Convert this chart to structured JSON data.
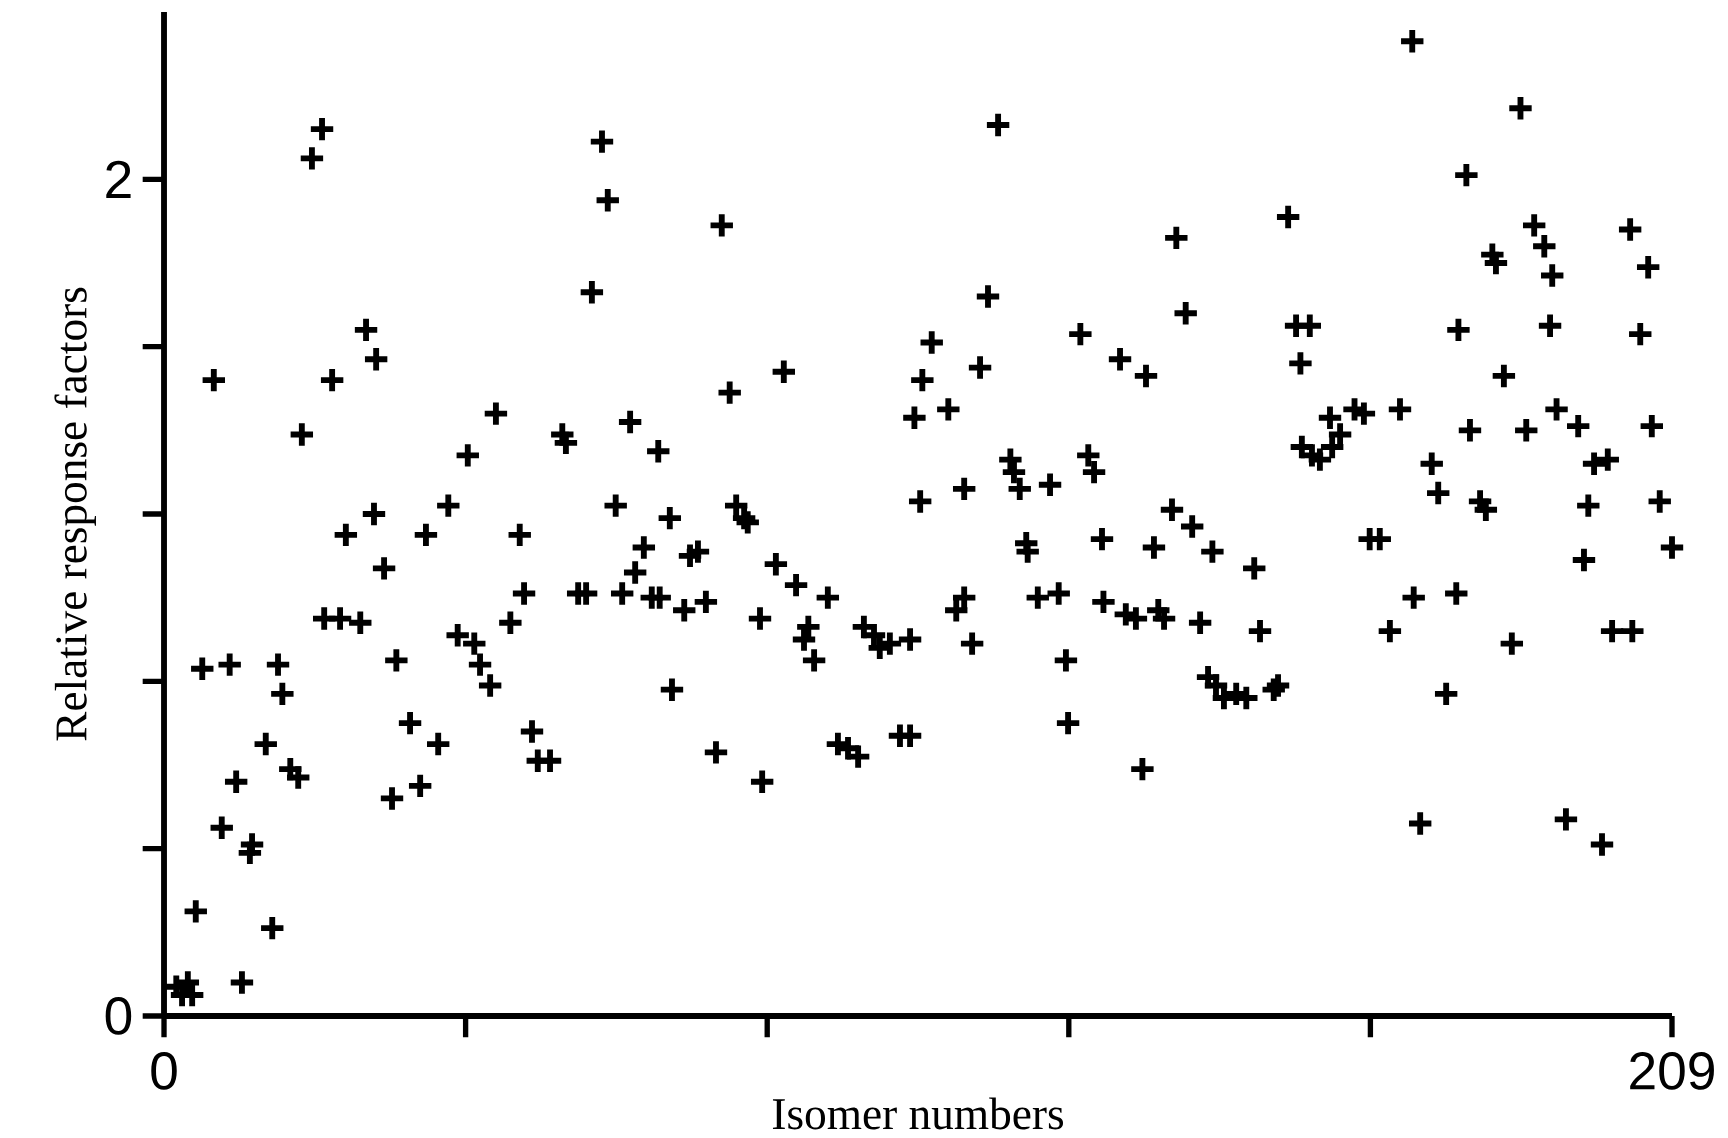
{
  "chart_data": {
    "type": "scatter",
    "xlabel": "Isomer numbers",
    "ylabel": "Relative response factors",
    "marker": "cross",
    "grid": false,
    "xlim": [
      0,
      209
    ],
    "ylim": [
      0,
      2.4
    ],
    "xticks": [
      0,
      {
        "value": 41.8,
        "label": null
      },
      {
        "value": 83.6,
        "label": null
      },
      {
        "value": 125.4,
        "label": null
      },
      {
        "value": 167.2,
        "label": null
      },
      209
    ],
    "yticks": [
      0,
      {
        "value": 0.4,
        "label": null
      },
      {
        "value": 0.8,
        "label": null
      },
      {
        "value": 1.2,
        "label": null
      },
      {
        "value": 1.6,
        "label": null
      },
      2
    ],
    "series": [
      {
        "color": "#000000",
        "x": [
          1.7,
          2.5,
          3.3,
          3.9,
          4.4,
          5.3,
          6.9,
          8.0,
          9.1,
          10.0,
          10.8,
          11.9,
          12.2,
          14.1,
          15.0,
          15.8,
          16.4,
          17.5,
          18.6,
          19.1,
          20.5,
          21.9,
          22.2,
          24.4,
          27.2,
          23.3,
          25.2,
          28.0,
          29.4,
          29.1,
          30.5,
          32.2,
          31.6,
          34.1,
          35.5,
          36.3,
          38.0,
          39.4,
          40.7,
          42.1,
          43.0,
          43.8,
          45.2,
          46.0,
          48.0,
          49.3,
          49.9,
          51.0,
          51.8,
          53.5,
          55.2,
          55.7,
          57.4,
          58.5,
          59.3,
          60.7,
          61.5,
          62.6,
          63.5,
          64.6,
          65.3,
          66.5,
          67.6,
          68.7,
          68.5,
          70.1,
          70.4,
          72.1,
          72.9,
          74.0,
          75.1,
          76.5,
          77.3,
          78.4,
          79.3,
          80.4,
          80.9,
          82.9,
          82.6,
          84.8,
          85.9,
          87.6,
          88.7,
          90.1,
          89.3,
          92.0,
          93.4,
          94.8,
          96.2,
          97.0,
          98.4,
          99.2,
          102.0,
          103.4,
          100.6,
          103.4,
          104.0,
          104.8,
          105.1,
          106.4,
          108.7,
          109.8,
          110.9,
          110.9,
          112.0,
          113.1,
          114.2,
          115.6,
          117.3,
          117.8,
          118.6,
          119.5,
          119.7,
          121.1,
          122.8,
          124.0,
          125.0,
          125.3,
          127.0,
          128.1,
          128.9,
          130.0,
          130.2,
          132.5,
          133.3,
          134.7,
          135.6,
          136.1,
          137.2,
          137.8,
          138.6,
          139.7,
          140.3,
          141.6,
          142.5,
          143.6,
          145.3,
          144.7,
          145.8,
          146.9,
          148.6,
          150.0,
          151.1,
          151.9,
          153.8,
          154.4,
          155.8,
          156.9,
          158.8,
          157.5,
          157.7,
          159.1,
          160.2,
          161.6,
          163.0,
          161.9,
          165.0,
          166.3,
          167.1,
          168.5,
          169.9,
          171.3,
          173.0,
          173.2,
          174.1,
          175.7,
          176.6,
          177.7,
          179.1,
          179.4,
          180.5,
          181.0,
          182.4,
          183.2,
          184.1,
          184.6,
          185.7,
          186.8,
          188.0,
          188.8,
          189.9,
          191.3,
          192.4,
          192.1,
          193.0,
          194.3,
          196.0,
          196.8,
          197.4,
          198.2,
          199.3,
          200.1,
          200.7,
          203.2,
          203.5,
          204.6,
          205.7,
          206.2,
          207.3,
          209.0
        ],
        "values": [
          0.07,
          0.05,
          0.08,
          0.05,
          0.25,
          0.83,
          1.52,
          0.45,
          0.84,
          0.56,
          0.08,
          0.39,
          0.41,
          0.65,
          0.21,
          0.84,
          0.77,
          0.59,
          0.57,
          1.39,
          2.05,
          2.12,
          0.95,
          0.95,
          0.94,
          1.52,
          1.15,
          1.64,
          1.57,
          1.2,
          1.07,
          0.85,
          0.52,
          0.7,
          0.55,
          1.15,
          0.65,
          1.22,
          0.91,
          1.34,
          0.89,
          0.84,
          0.79,
          1.44,
          0.94,
          1.15,
          1.01,
          0.68,
          0.61,
          0.61,
          1.39,
          1.37,
          1.01,
          1.01,
          1.73,
          2.09,
          1.95,
          1.22,
          1.01,
          1.42,
          1.06,
          1.12,
          1.0,
          1.0,
          1.35,
          1.19,
          0.78,
          0.97,
          1.1,
          1.11,
          0.99,
          0.63,
          1.89,
          1.49,
          1.22,
          1.19,
          1.18,
          0.56,
          0.95,
          1.08,
          1.54,
          1.03,
          0.9,
          0.85,
          0.93,
          1.0,
          0.65,
          0.64,
          0.62,
          0.93,
          0.91,
          0.88,
          0.67,
          0.67,
          0.89,
          0.9,
          1.43,
          1.23,
          1.52,
          1.61,
          1.45,
          0.97,
          1.0,
          1.26,
          0.89,
          1.55,
          1.72,
          2.13,
          1.33,
          1.3,
          1.26,
          1.13,
          1.11,
          1.0,
          1.27,
          1.01,
          0.85,
          0.7,
          1.63,
          1.34,
          1.3,
          1.14,
          0.99,
          1.57,
          0.96,
          0.95,
          0.59,
          1.53,
          1.12,
          0.97,
          0.95,
          1.21,
          1.86,
          1.68,
          1.17,
          0.94,
          1.11,
          0.81,
          0.79,
          0.76,
          0.77,
          0.76,
          1.07,
          0.92,
          0.78,
          0.79,
          1.91,
          1.65,
          1.65,
          1.56,
          1.36,
          1.34,
          1.33,
          1.43,
          1.39,
          1.36,
          1.45,
          1.44,
          1.14,
          1.14,
          0.92,
          1.45,
          2.33,
          1.0,
          0.46,
          1.32,
          1.25,
          0.77,
          1.01,
          1.64,
          2.01,
          1.4,
          1.23,
          1.21,
          1.82,
          1.8,
          1.53,
          0.89,
          2.17,
          1.4,
          1.89,
          1.84,
          1.77,
          1.65,
          1.45,
          0.47,
          1.41,
          1.09,
          1.22,
          1.32,
          0.41,
          1.33,
          0.92,
          1.88,
          0.92,
          1.63,
          1.79,
          1.41,
          1.23,
          1.12
        ]
      }
    ]
  }
}
